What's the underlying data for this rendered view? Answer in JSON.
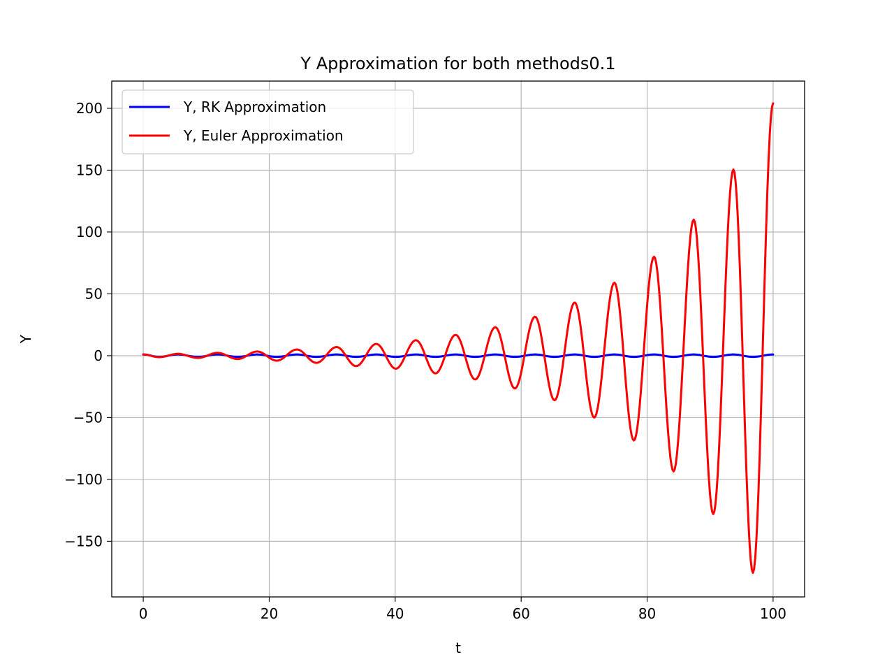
{
  "chart_data": {
    "type": "line",
    "title": "Y Approximation for both methods0.1",
    "xlabel": "t",
    "ylabel": "Y",
    "xlim": [
      -5,
      105
    ],
    "ylim": [
      -195,
      222
    ],
    "grid": true,
    "legend_position": "upper-left",
    "x_ticks": [
      0,
      20,
      40,
      60,
      80,
      100
    ],
    "x_tick_labels": [
      "0",
      "20",
      "40",
      "60",
      "80",
      "100"
    ],
    "y_ticks": [
      200,
      150,
      100,
      50,
      0,
      -50,
      -100,
      -150
    ],
    "y_tick_labels": [
      "200",
      "150",
      "100",
      "50",
      "0",
      "−50",
      "−100",
      "−150"
    ],
    "series": [
      {
        "name": "Y, RK Approximation",
        "color": "#0000ff",
        "x": [
          0,
          2.5,
          5.5,
          8.7,
          11.8,
          15,
          18.1,
          21.2,
          24.4,
          27.5,
          30.7,
          33.8,
          37,
          40.1,
          43.3,
          46.4,
          49.6,
          52.7,
          55.9,
          59,
          62.2,
          65.3,
          68.5,
          71.6,
          74.8,
          77.9,
          81.1,
          84.2,
          87.4,
          90.5,
          93.7,
          96.8,
          100
        ],
        "y": [
          1,
          -1,
          1,
          -1,
          1,
          -1,
          1,
          -1,
          1,
          -1,
          1,
          -1,
          1,
          -1,
          1,
          -1,
          1,
          -1,
          1,
          -1,
          1,
          -1,
          1,
          -1,
          1,
          -1,
          1,
          -1,
          1,
          -1,
          1,
          -1,
          1
        ]
      },
      {
        "name": "Y, Euler Approximation",
        "color": "#ff0000",
        "x": [
          0,
          2.5,
          5.5,
          8.7,
          11.8,
          15,
          18.1,
          21.2,
          24.4,
          27.5,
          30.7,
          33.8,
          37,
          40.1,
          43.3,
          46.4,
          49.6,
          52.7,
          55.9,
          59,
          62.2,
          65.3,
          68.5,
          71.6,
          74.8,
          77.9,
          81.1,
          84.2,
          87.4,
          90.5,
          93.7,
          96.8,
          100
        ],
        "y": [
          1,
          -1.2,
          1.5,
          -1.8,
          2.3,
          -2.7,
          3.4,
          -4,
          5,
          -5.8,
          7,
          -8.4,
          9.5,
          -10.5,
          12.5,
          -14.3,
          16.8,
          -19.2,
          23,
          -26.5,
          31.5,
          -36,
          43,
          -50,
          59,
          -68.5,
          80,
          -93.5,
          110,
          -128,
          150.5,
          -175.5,
          204
        ]
      }
    ]
  }
}
